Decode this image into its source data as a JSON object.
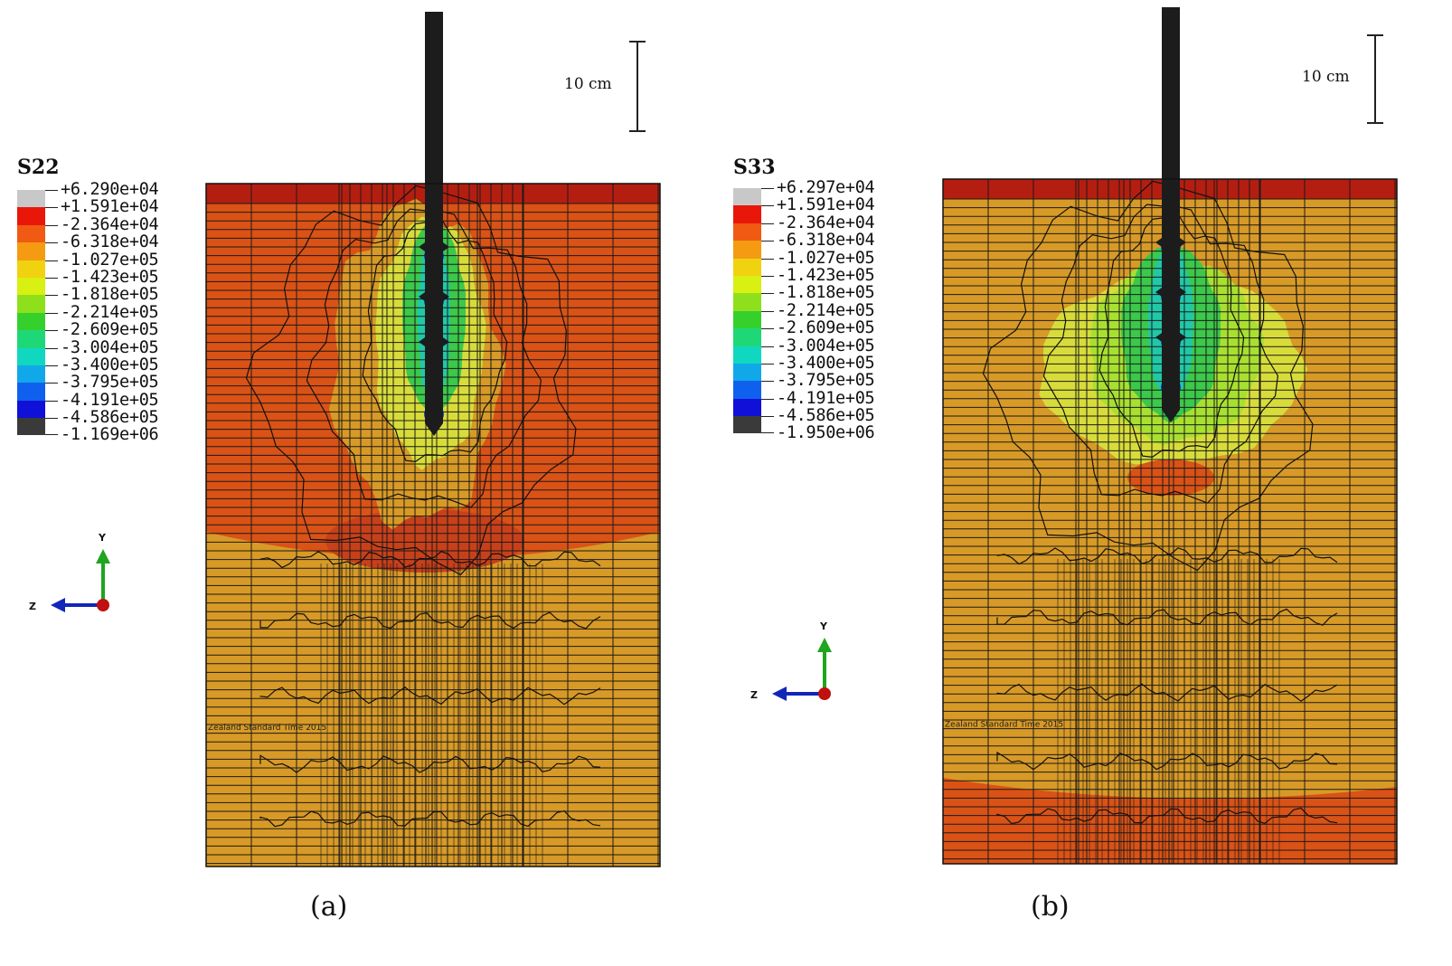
{
  "panels": [
    {
      "caption": "(a)",
      "legend_title": "S22",
      "legend_labels": [
        "+6.290e+04",
        "+1.591e+04",
        "-2.364e+04",
        "-6.318e+04",
        "-1.027e+05",
        "-1.423e+05",
        "-1.818e+05",
        "-2.214e+05",
        "-2.609e+05",
        "-3.004e+05",
        "-3.400e+05",
        "-3.795e+05",
        "-4.191e+05",
        "-4.586e+05",
        "-1.169e+06"
      ],
      "scale_label": "10 cm",
      "axis_y": "Y",
      "axis_z": "Z",
      "timestamp_text": "Zealand Standard Time 2015"
    },
    {
      "caption": "(b)",
      "legend_title": "S33",
      "legend_labels": [
        "+6.297e+04",
        "+1.591e+04",
        "-2.364e+04",
        "-6.318e+04",
        "-1.027e+05",
        "-1.423e+05",
        "-1.818e+05",
        "-2.214e+05",
        "-2.609e+05",
        "-3.004e+05",
        "-3.400e+05",
        "-3.795e+05",
        "-4.191e+05",
        "-4.586e+05",
        "-1.950e+06"
      ],
      "scale_label": "10 cm",
      "axis_y": "Y",
      "axis_z": "Z",
      "timestamp_text": "Zealand Standard Time 2015"
    }
  ],
  "colors": {
    "legend_swatches": [
      "#c8c8c8",
      "#e8170a",
      "#f05a12",
      "#f59b12",
      "#f0d210",
      "#d8f012",
      "#8ee01c",
      "#36d02c",
      "#1ed878",
      "#10d8c0",
      "#10a8e8",
      "#1060f0",
      "#1010d8",
      "#3a3a3a"
    ],
    "grid_line": "#1a1a1a",
    "pile": "#1c1c1c",
    "contour_top_red": "#b41e10",
    "contour_orange_red": "#da5216",
    "contour_orange": "#d89a26",
    "contour_yellow": "#d8dc3a",
    "contour_green": "#3cc84a",
    "contour_cyan": "#20c8a8",
    "contour_blue": "#1040e0",
    "axis_green": "#1fa51f",
    "axis_blue": "#1226b8",
    "axis_red": "#c01010"
  }
}
